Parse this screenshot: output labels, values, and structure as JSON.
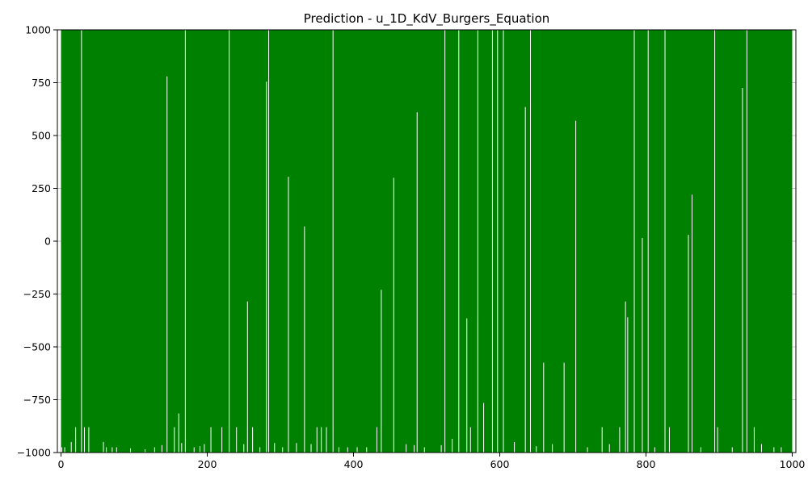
{
  "chart_data": {
    "type": "bar",
    "title": "Prediction - u_1D_KdV_Burgers_Equation",
    "xlabel": "",
    "ylabel": "",
    "xlim": [
      -5,
      1005
    ],
    "ylim": [
      -1000,
      1000
    ],
    "x_ticks": [
      0,
      200,
      400,
      600,
      800,
      1000
    ],
    "x_tick_labels": [
      "0",
      "200",
      "400",
      "600",
      "800",
      "1000"
    ],
    "y_ticks": [
      -1000,
      -750,
      -500,
      -250,
      0,
      250,
      500,
      750,
      1000
    ],
    "y_tick_labels": [
      "−1000",
      "−750",
      "−500",
      "−250",
      "0",
      "250",
      "500",
      "750",
      "1000"
    ],
    "grid": {
      "y": true,
      "x": false
    },
    "bar_color": "#008000",
    "bar_baseline": -1000,
    "bar_range": [
      0,
      1000
    ],
    "bar_width": 1,
    "gaps": [
      {
        "x": 1,
        "top": -975
      },
      {
        "x": 5,
        "top": -975
      },
      {
        "x": 14,
        "top": -950
      },
      {
        "x": 20,
        "top": -880
      },
      {
        "x": 28,
        "top": 1000
      },
      {
        "x": 32,
        "top": -880
      },
      {
        "x": 38,
        "top": -880
      },
      {
        "x": 58,
        "top": -950
      },
      {
        "x": 62,
        "top": -975
      },
      {
        "x": 70,
        "top": -975
      },
      {
        "x": 76,
        "top": -975
      },
      {
        "x": 95,
        "top": -980
      },
      {
        "x": 115,
        "top": -985
      },
      {
        "x": 128,
        "top": -975
      },
      {
        "x": 138,
        "top": -965
      },
      {
        "x": 145,
        "top": 780
      },
      {
        "x": 155,
        "top": -880
      },
      {
        "x": 161,
        "top": -815
      },
      {
        "x": 165,
        "top": -955
      },
      {
        "x": 170,
        "top": 1000
      },
      {
        "x": 182,
        "top": -975
      },
      {
        "x": 190,
        "top": -970
      },
      {
        "x": 196,
        "top": -960
      },
      {
        "x": 205,
        "top": -880
      },
      {
        "x": 220,
        "top": -880
      },
      {
        "x": 230,
        "top": 1000
      },
      {
        "x": 240,
        "top": -880
      },
      {
        "x": 250,
        "top": -960
      },
      {
        "x": 255,
        "top": -285
      },
      {
        "x": 262,
        "top": -880
      },
      {
        "x": 272,
        "top": -975
      },
      {
        "x": 281,
        "top": 755
      },
      {
        "x": 284,
        "top": 1000
      },
      {
        "x": 292,
        "top": -955
      },
      {
        "x": 303,
        "top": -975
      },
      {
        "x": 311,
        "top": 305
      },
      {
        "x": 322,
        "top": -955
      },
      {
        "x": 333,
        "top": 70
      },
      {
        "x": 342,
        "top": -960
      },
      {
        "x": 350,
        "top": -880
      },
      {
        "x": 356,
        "top": -880
      },
      {
        "x": 363,
        "top": -880
      },
      {
        "x": 372,
        "top": 1000
      },
      {
        "x": 380,
        "top": -975
      },
      {
        "x": 392,
        "top": -975
      },
      {
        "x": 405,
        "top": -975
      },
      {
        "x": 418,
        "top": -975
      },
      {
        "x": 432,
        "top": -880
      },
      {
        "x": 438,
        "top": -230
      },
      {
        "x": 455,
        "top": 300
      },
      {
        "x": 472,
        "top": -960
      },
      {
        "x": 483,
        "top": -965
      },
      {
        "x": 487,
        "top": 610
      },
      {
        "x": 497,
        "top": -975
      },
      {
        "x": 520,
        "top": -965
      },
      {
        "x": 525,
        "top": 1000
      },
      {
        "x": 535,
        "top": -935
      },
      {
        "x": 544,
        "top": 1000
      },
      {
        "x": 555,
        "top": -365
      },
      {
        "x": 560,
        "top": -880
      },
      {
        "x": 570,
        "top": 1000
      },
      {
        "x": 578,
        "top": -765
      },
      {
        "x": 590,
        "top": 1000
      },
      {
        "x": 597,
        "top": 1000
      },
      {
        "x": 605,
        "top": 1000
      },
      {
        "x": 620,
        "top": -950
      },
      {
        "x": 635,
        "top": 635
      },
      {
        "x": 642,
        "top": 1000
      },
      {
        "x": 650,
        "top": -970
      },
      {
        "x": 660,
        "top": -575
      },
      {
        "x": 672,
        "top": -960
      },
      {
        "x": 688,
        "top": -575
      },
      {
        "x": 704,
        "top": 570
      },
      {
        "x": 720,
        "top": -975
      },
      {
        "x": 740,
        "top": -880
      },
      {
        "x": 750,
        "top": -960
      },
      {
        "x": 764,
        "top": -880
      },
      {
        "x": 772,
        "top": -285
      },
      {
        "x": 775,
        "top": -360
      },
      {
        "x": 784,
        "top": 1000
      },
      {
        "x": 795,
        "top": 15
      },
      {
        "x": 803,
        "top": 1000
      },
      {
        "x": 812,
        "top": -975
      },
      {
        "x": 826,
        "top": 1000
      },
      {
        "x": 832,
        "top": -880
      },
      {
        "x": 858,
        "top": 30
      },
      {
        "x": 863,
        "top": 220
      },
      {
        "x": 875,
        "top": -975
      },
      {
        "x": 894,
        "top": 1000
      },
      {
        "x": 898,
        "top": -880
      },
      {
        "x": 918,
        "top": -975
      },
      {
        "x": 932,
        "top": 725
      },
      {
        "x": 938,
        "top": 1000
      },
      {
        "x": 948,
        "top": -880
      },
      {
        "x": 958,
        "top": -960
      },
      {
        "x": 975,
        "top": -975
      },
      {
        "x": 985,
        "top": -975
      }
    ]
  }
}
